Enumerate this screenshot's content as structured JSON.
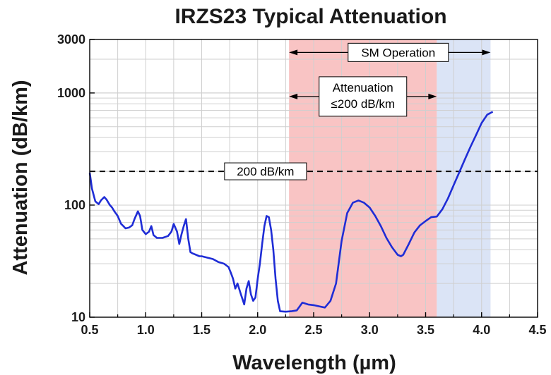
{
  "chart_data": {
    "type": "line",
    "title": "IRZS23 Typical Attenuation",
    "xlabel": "Wavelength (µm)",
    "ylabel": "Attenuation (dB/km)",
    "xlim": [
      0.5,
      4.5
    ],
    "ylim": [
      10,
      3000
    ],
    "yscale": "log",
    "x_ticks": [
      "0.5",
      "1.0",
      "1.5",
      "2.0",
      "2.5",
      "3.0",
      "3.5",
      "4.0",
      "4.5"
    ],
    "y_ticks": [
      "10",
      "100",
      "1000",
      "3000"
    ],
    "grid": true,
    "bands": [
      {
        "name": "attenuation-band",
        "x0": 2.28,
        "x1": 3.6,
        "color": "#f9c4c4"
      },
      {
        "name": "sm-band",
        "x0": 3.6,
        "x1": 4.08,
        "color": "#dbe4f6"
      }
    ],
    "reference_line": {
      "y": 200,
      "label": "200 dB/km",
      "color": "#000000"
    },
    "annotations": [
      {
        "text": "SM Operation",
        "x_start": 2.28,
        "x_end": 4.08,
        "y": 2300
      },
      {
        "lines": [
          "Attenuation",
          "≤200 dB/km"
        ],
        "x_start": 2.28,
        "x_end": 3.6,
        "y": 930
      }
    ],
    "series": [
      {
        "color": "#1f2dd6",
        "x": [
          0.5,
          0.52,
          0.55,
          0.58,
          0.6,
          0.63,
          0.65,
          0.68,
          0.7,
          0.72,
          0.75,
          0.78,
          0.8,
          0.82,
          0.85,
          0.88,
          0.9,
          0.93,
          0.95,
          0.97,
          1.0,
          1.03,
          1.05,
          1.07,
          1.1,
          1.15,
          1.2,
          1.23,
          1.25,
          1.28,
          1.3,
          1.32,
          1.34,
          1.36,
          1.38,
          1.4,
          1.42,
          1.45,
          1.48,
          1.5,
          1.55,
          1.6,
          1.65,
          1.7,
          1.74,
          1.76,
          1.78,
          1.8,
          1.82,
          1.85,
          1.87,
          1.88,
          1.9,
          1.92,
          1.94,
          1.96,
          1.98,
          2.0,
          2.02,
          2.04,
          2.06,
          2.08,
          2.1,
          2.12,
          2.14,
          2.16,
          2.18,
          2.2,
          2.25,
          2.3,
          2.35,
          2.4,
          2.45,
          2.5,
          2.55,
          2.6,
          2.65,
          2.7,
          2.75,
          2.8,
          2.85,
          2.9,
          2.95,
          3.0,
          3.05,
          3.1,
          3.15,
          3.2,
          3.25,
          3.28,
          3.3,
          3.35,
          3.4,
          3.45,
          3.5,
          3.55,
          3.6,
          3.65,
          3.7,
          3.75,
          3.8,
          3.85,
          3.9,
          3.95,
          4.0,
          4.05,
          4.1
        ],
        "y": [
          195,
          140,
          108,
          102,
          110,
          118,
          112,
          100,
          95,
          88,
          80,
          68,
          65,
          62,
          63,
          66,
          75,
          88,
          80,
          60,
          55,
          58,
          65,
          54,
          51,
          51,
          53,
          58,
          68,
          58,
          45,
          55,
          65,
          75,
          50,
          38,
          37,
          36,
          35,
          35,
          34,
          33,
          31,
          30,
          28,
          25,
          22,
          18,
          20,
          16,
          14,
          13,
          18,
          21,
          16,
          14,
          15,
          22,
          30,
          45,
          65,
          80,
          78,
          60,
          40,
          22,
          14,
          11.3,
          11.2,
          11.3,
          11.5,
          13.5,
          13,
          12.8,
          12.5,
          12.2,
          14,
          20,
          48,
          85,
          105,
          110,
          105,
          95,
          80,
          65,
          51,
          42,
          36,
          35,
          36,
          45,
          57,
          66,
          72,
          78,
          79,
          92,
          115,
          150,
          195,
          255,
          330,
          420,
          540,
          640,
          680
        ]
      }
    ]
  }
}
